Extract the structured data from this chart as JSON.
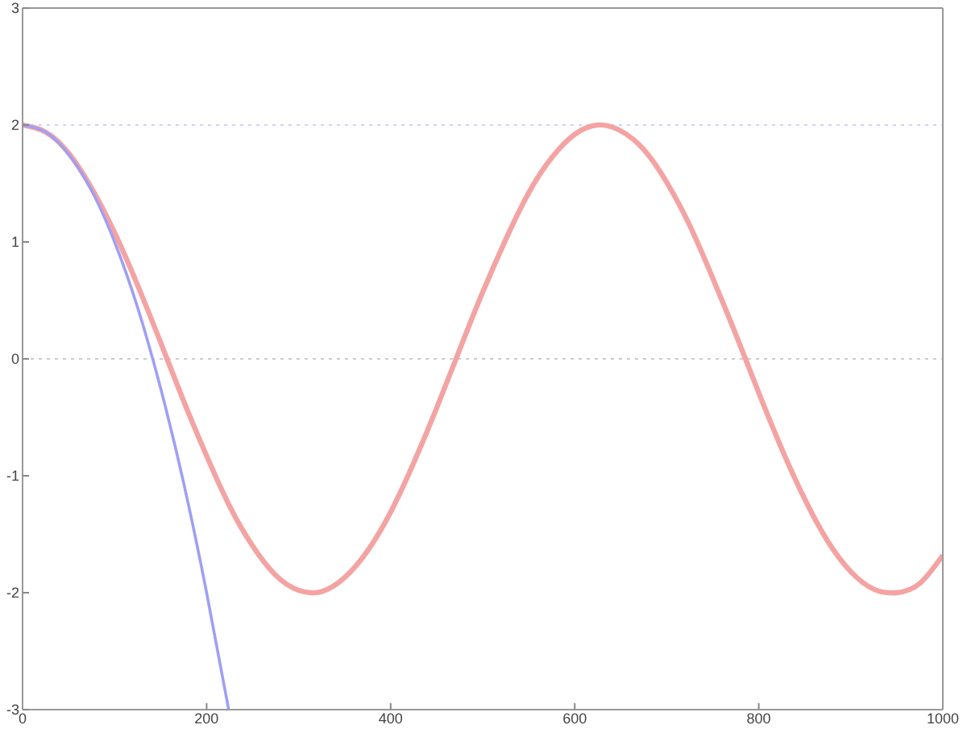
{
  "chart_data": {
    "type": "line",
    "xlim": [
      0,
      1000
    ],
    "xticks": [
      0,
      200,
      400,
      600,
      800,
      1000
    ],
    "ylim": [
      -3,
      3
    ],
    "yticks": [
      -3,
      -2,
      -1,
      0,
      1,
      2,
      3
    ],
    "marker": "none",
    "line_style": "solid",
    "series": [
      {
        "color": "#f4a3a3",
        "x": [
          0,
          25,
          50,
          75,
          100,
          125,
          150,
          175,
          200,
          225,
          250,
          275,
          300,
          325,
          350,
          375,
          400,
          425,
          450,
          475,
          500,
          525,
          550,
          575,
          600,
          625,
          650,
          675,
          700,
          725,
          750,
          775,
          800,
          825,
          850,
          875,
          900,
          925,
          950,
          975,
          1000
        ],
        "values": [
          2,
          1.94,
          1.76,
          1.46,
          1.08,
          0.63,
          0.14,
          -0.36,
          -0.83,
          -1.26,
          -1.6,
          -1.85,
          -1.98,
          -1.99,
          -1.87,
          -1.64,
          -1.31,
          -0.89,
          -0.42,
          0.08,
          0.57,
          1.02,
          1.42,
          1.72,
          1.92,
          2,
          1.95,
          1.79,
          1.51,
          1.14,
          0.69,
          0.21,
          -0.29,
          -0.77,
          -1.2,
          -1.56,
          -1.82,
          -1.97,
          -2,
          -1.92,
          -1.68
        ]
      },
      {
        "color": "#9f9ff5",
        "x": [
          0,
          25,
          50,
          75,
          100,
          125,
          150,
          175,
          200,
          224
        ],
        "values": [
          2,
          1.94,
          1.75,
          1.44,
          1,
          0.44,
          -0.25,
          -1.06,
          -2,
          -3
        ]
      }
    ],
    "ref_lines": [
      {
        "axis": "y",
        "value": 2,
        "color": "#d0d0ff",
        "line_style": "dotted"
      },
      {
        "axis": "y",
        "value": 0,
        "color": "#cccccc",
        "line_style": "dotted"
      }
    ]
  }
}
